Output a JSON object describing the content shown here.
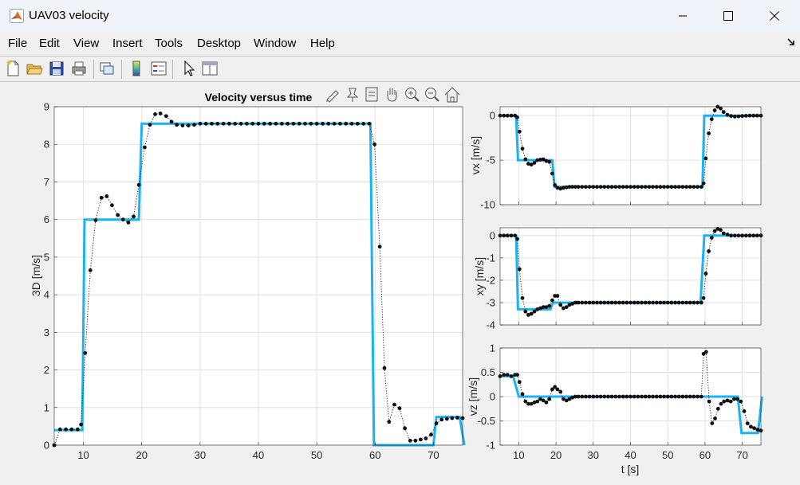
{
  "window": {
    "title": "UAV03 velocity",
    "icon": "matlab-logo-icon"
  },
  "menu": [
    "File",
    "Edit",
    "View",
    "Insert",
    "Tools",
    "Desktop",
    "Window",
    "Help"
  ],
  "toolbar_icons": [
    "new-figure-icon",
    "open-file-icon",
    "save-icon",
    "print-icon",
    "link-plot-icon",
    "colorbar-icon",
    "legend-icon",
    "pointer-icon",
    "property-inspector-icon"
  ],
  "axes_toolbar_icons": [
    "brush-icon",
    "data-tips-icon",
    "restore-view-icon",
    "pan-icon",
    "zoom-in-icon",
    "zoom-out-icon",
    "home-icon"
  ],
  "colors": {
    "reference_line": "#1ab2f0",
    "measured": "#111111"
  },
  "chart_data": [
    {
      "type": "line",
      "title": "Velocity versus time",
      "xlabel": "",
      "ylabel": "3D [m/s]",
      "xlim": [
        5,
        75
      ],
      "ylim": [
        0,
        9
      ],
      "xticks": [
        10,
        20,
        30,
        40,
        50,
        60,
        70
      ],
      "yticks": [
        0,
        1,
        2,
        3,
        4,
        5,
        6,
        7,
        8,
        9
      ],
      "grid": true,
      "series": [
        {
          "style": "solid-blue",
          "x": [
            5,
            9.8,
            10.2,
            19.5,
            20,
            59.2,
            59.8,
            70,
            70.5,
            74.5,
            75.3
          ],
          "y": [
            0.4,
            0.4,
            6.0,
            6.0,
            8.55,
            8.55,
            0,
            0,
            0.75,
            0.75,
            0
          ]
        },
        {
          "style": "dotted-black-markers",
          "x": [
            5,
            6,
            7,
            8,
            9,
            9.6,
            10.3,
            11.2,
            12.1,
            13.1,
            14,
            14.9,
            15.9,
            16.8,
            17.7,
            18.6,
            19.5,
            20.5,
            21.4,
            22.3,
            23.2,
            24.2,
            25.1,
            26,
            27,
            28,
            29,
            30,
            31,
            32,
            33,
            34,
            35,
            36,
            37,
            38,
            39,
            40,
            41,
            42,
            43,
            44,
            45,
            46,
            47,
            48,
            49,
            50,
            51,
            52,
            53,
            54,
            55,
            56,
            57,
            58,
            59,
            59.9,
            60.8,
            61.6,
            62.4,
            63.3,
            64.2,
            65.1,
            66,
            66.9,
            67.8,
            68.7,
            69.6,
            70.5,
            71.4,
            72.3,
            73.2,
            74.1,
            75
          ],
          "y": [
            0.0,
            0.42,
            0.42,
            0.42,
            0.42,
            0.55,
            2.45,
            4.65,
            5.98,
            6.58,
            6.62,
            6.38,
            6.12,
            6.0,
            5.92,
            6.08,
            6.92,
            7.92,
            8.52,
            8.8,
            8.82,
            8.75,
            8.6,
            8.52,
            8.5,
            8.5,
            8.52,
            8.55,
            8.55,
            8.55,
            8.55,
            8.55,
            8.55,
            8.55,
            8.55,
            8.55,
            8.55,
            8.55,
            8.55,
            8.55,
            8.55,
            8.55,
            8.55,
            8.55,
            8.55,
            8.55,
            8.55,
            8.55,
            8.55,
            8.55,
            8.55,
            8.55,
            8.55,
            8.55,
            8.55,
            8.55,
            8.55,
            8.0,
            5.28,
            2.05,
            0.62,
            1.08,
            0.98,
            0.45,
            0.12,
            0.12,
            0.15,
            0.18,
            0.28,
            0.58,
            0.68,
            0.7,
            0.72,
            0.73,
            0.72
          ]
        }
      ]
    },
    {
      "type": "line",
      "ylabel": "vx [m/s]",
      "xlim": [
        5,
        75
      ],
      "ylim": [
        -10,
        1
      ],
      "xticks": [
        10,
        20,
        30,
        40,
        50,
        60,
        70
      ],
      "yticks": [
        0,
        -5,
        -10
      ],
      "grid": true,
      "series": [
        {
          "style": "solid-blue",
          "x": [
            5,
            9.3,
            9.8,
            14.5,
            19,
            19.6,
            59.3,
            59.8,
            75
          ],
          "y": [
            0,
            0,
            -5,
            -5,
            -5,
            -8,
            -8,
            0,
            0
          ]
        },
        {
          "style": "dotted-black-markers",
          "x": [
            5,
            6,
            7,
            8,
            9,
            9.6,
            10.2,
            11,
            11.8,
            12.6,
            13.4,
            14.2,
            15,
            15.8,
            16.6,
            17.4,
            18.2,
            19,
            19.7,
            20.4,
            21.2,
            22,
            22.8,
            23.6,
            24.4,
            25.2,
            26,
            27,
            28,
            29,
            30,
            31,
            32,
            33,
            34,
            35,
            36,
            37,
            38,
            39,
            40,
            41,
            42,
            43,
            44,
            45,
            46,
            47,
            48,
            49,
            50,
            51,
            52,
            53,
            54,
            55,
            56,
            57,
            58,
            59,
            59.6,
            60.2,
            61,
            61.8,
            62.6,
            63.4,
            64.2,
            65,
            66,
            67,
            68,
            69,
            70,
            71,
            72,
            73,
            74,
            75
          ],
          "y": [
            0,
            0,
            0,
            0,
            0,
            -0.2,
            -1.8,
            -3.7,
            -4.9,
            -5.4,
            -5.5,
            -5.3,
            -5.0,
            -4.95,
            -4.9,
            -5.1,
            -5.2,
            -6.5,
            -7.8,
            -8.1,
            -8.2,
            -8.1,
            -8.05,
            -8.0,
            -8.0,
            -8.0,
            -8.0,
            -8.0,
            -8.0,
            -8.0,
            -8.0,
            -8.0,
            -8.0,
            -8.0,
            -8.0,
            -8.0,
            -8.0,
            -8.0,
            -8.0,
            -8.0,
            -8.0,
            -8.0,
            -8.0,
            -8.0,
            -8.0,
            -8.0,
            -8.0,
            -8.0,
            -8.0,
            -8.0,
            -8.0,
            -8.0,
            -8.0,
            -8.0,
            -8.0,
            -8.0,
            -8.0,
            -8.0,
            -8.0,
            -8.0,
            -7.6,
            -4.8,
            -2.0,
            -0.4,
            0.6,
            1.0,
            0.8,
            0.4,
            0.1,
            -0.05,
            -0.1,
            -0.08,
            -0.05,
            -0.02,
            0,
            0,
            0,
            0
          ]
        }
      ]
    },
    {
      "type": "line",
      "ylabel": "xy [m/s]",
      "xlim": [
        5,
        75
      ],
      "ylim": [
        -4,
        0.35
      ],
      "xticks": [
        10,
        20,
        30,
        40,
        50,
        60,
        70
      ],
      "yticks": [
        0,
        -1,
        -2,
        -3,
        -4
      ],
      "grid": true,
      "series": [
        {
          "style": "solid-blue",
          "x": [
            5,
            9.3,
            9.8,
            13,
            18.5,
            19.2,
            58.8,
            59.8,
            75
          ],
          "y": [
            0,
            0,
            -3.3,
            -3.3,
            -3.3,
            -3.0,
            -3.0,
            0,
            0
          ]
        },
        {
          "style": "dotted-black-markers",
          "x": [
            5,
            6,
            7,
            8,
            9,
            9.6,
            10.2,
            11,
            11.8,
            12.6,
            13.4,
            14.2,
            15,
            15.8,
            16.6,
            17.4,
            18.2,
            19,
            19.7,
            20.4,
            21.2,
            22,
            22.8,
            23.6,
            24.4,
            25.2,
            26,
            27,
            28,
            29,
            30,
            31,
            32,
            33,
            34,
            35,
            36,
            37,
            38,
            39,
            40,
            41,
            42,
            43,
            44,
            45,
            46,
            47,
            48,
            49,
            50,
            51,
            52,
            53,
            54,
            55,
            56,
            57,
            58,
            59,
            59.6,
            60.2,
            61,
            61.8,
            62.6,
            63.4,
            64.2,
            65,
            66,
            67,
            68,
            69,
            70,
            71,
            72,
            73,
            74,
            75
          ],
          "y": [
            0,
            0,
            0,
            0,
            0,
            -0.15,
            -1.5,
            -2.8,
            -3.4,
            -3.55,
            -3.5,
            -3.4,
            -3.3,
            -3.25,
            -3.2,
            -3.2,
            -3.15,
            -2.9,
            -2.7,
            -2.7,
            -3.1,
            -3.25,
            -3.2,
            -3.1,
            -3.05,
            -3.0,
            -3.0,
            -3.0,
            -3.0,
            -3.0,
            -3.0,
            -3.0,
            -3.0,
            -3.0,
            -3.0,
            -3.0,
            -3.0,
            -3.0,
            -3.0,
            -3.0,
            -3.0,
            -3.0,
            -3.0,
            -3.0,
            -3.0,
            -3.0,
            -3.0,
            -3.0,
            -3.0,
            -3.0,
            -3.0,
            -3.0,
            -3.0,
            -3.0,
            -3.0,
            -3.0,
            -3.0,
            -3.0,
            -3.0,
            -3.0,
            -2.8,
            -1.7,
            -0.7,
            -0.1,
            0.2,
            0.3,
            0.25,
            0.1,
            0.05,
            0,
            0,
            0,
            0,
            0,
            0,
            0,
            0,
            0
          ]
        }
      ]
    },
    {
      "type": "line",
      "ylabel": "vz [m/s]",
      "xlabel": "t [s]",
      "xlim": [
        5,
        75
      ],
      "ylim": [
        -1,
        1
      ],
      "xticks": [
        10,
        20,
        30,
        40,
        50,
        60,
        70
      ],
      "yticks": [
        1,
        0.5,
        0,
        -0.5,
        -1
      ],
      "grid": true,
      "series": [
        {
          "style": "solid-blue",
          "x": [
            5,
            7.8,
            8.5,
            10,
            68.8,
            69.8,
            74.2,
            75.3
          ],
          "y": [
            0.42,
            0.42,
            0.42,
            0,
            0,
            -0.75,
            -0.75,
            0
          ]
        },
        {
          "style": "dotted-black-markers",
          "x": [
            5,
            6,
            7,
            8,
            9,
            9.6,
            10.2,
            11,
            11.8,
            12.6,
            13.4,
            14.2,
            15,
            15.8,
            16.6,
            17.4,
            18.2,
            19,
            19.7,
            20.4,
            21.2,
            22,
            22.8,
            23.6,
            24.4,
            25.2,
            26,
            27,
            28,
            29,
            30,
            31,
            32,
            33,
            34,
            35,
            36,
            37,
            38,
            39,
            40,
            41,
            42,
            43,
            44,
            45,
            46,
            47,
            48,
            49,
            50,
            51,
            52,
            53,
            54,
            55,
            56,
            57,
            58,
            59,
            59.6,
            60.3,
            61.1,
            61.9,
            62.7,
            63.5,
            64.3,
            65.1,
            66,
            66.9,
            67.8,
            68.7,
            69.6,
            70.5,
            71.4,
            72.3,
            73.2,
            74.1,
            75
          ],
          "y": [
            0.42,
            0.45,
            0.45,
            0.42,
            0.45,
            0.45,
            0.3,
            0.05,
            -0.1,
            -0.15,
            -0.15,
            -0.12,
            -0.1,
            -0.05,
            -0.08,
            -0.12,
            -0.05,
            0.15,
            0.2,
            0.15,
            0.1,
            -0.05,
            -0.08,
            -0.05,
            -0.02,
            0,
            0,
            0,
            0,
            0,
            0,
            0,
            0,
            0,
            0,
            0,
            0,
            0,
            0,
            0,
            0,
            0,
            0,
            0,
            0,
            0,
            0,
            0,
            0,
            0,
            0,
            0,
            0,
            0,
            0,
            0,
            0,
            0,
            0,
            0,
            0.88,
            0.92,
            -0.1,
            -0.55,
            -0.45,
            -0.25,
            -0.15,
            -0.1,
            -0.08,
            -0.1,
            -0.05,
            -0.05,
            -0.1,
            -0.3,
            -0.55,
            -0.62,
            -0.65,
            -0.68,
            -0.7
          ]
        }
      ]
    }
  ]
}
